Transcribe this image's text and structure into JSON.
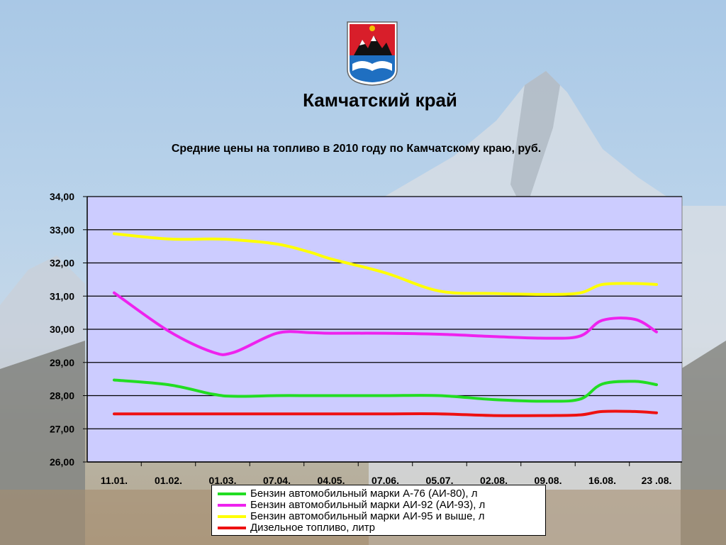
{
  "region_title": "Камчатский край",
  "emblem_icon": "kamchatka-coat-of-arms-icon",
  "chart_data": {
    "type": "line",
    "title": "Средние цены на топливо в 2010 году по Камчатскому краю, руб.",
    "xlabel": "",
    "ylabel": "",
    "categories": [
      "11.01.",
      "01.02.",
      "01.03.",
      "07.04.",
      "04.05.",
      "07.06.",
      "05.07.",
      "02.08.",
      "09.08.",
      "16.08.",
      "23 .08."
    ],
    "x": [
      0,
      1,
      1.8,
      2.2,
      3,
      3.6,
      4,
      5,
      6,
      7,
      8,
      8.6,
      9,
      9.6,
      10
    ],
    "ylim": [
      26,
      34
    ],
    "ytick_labels": [
      "26,00",
      "27,00",
      "28,00",
      "29,00",
      "30,00",
      "31,00",
      "32,00",
      "33,00",
      "34,00"
    ],
    "grid": true,
    "plot_background": "#ccccff",
    "legend_position": "bottom",
    "series": [
      {
        "name": "Бензин автомобильный марки А-76 (АИ-80), л",
        "color": "#22dd22",
        "values": [
          28.47,
          28.33,
          28.05,
          27.98,
          28.0,
          28.0,
          28.0,
          28.0,
          28.0,
          27.88,
          27.83,
          27.9,
          28.35,
          28.43,
          28.33
        ]
      },
      {
        "name": "Бензин автомобильный марки АИ-92 (АИ-93), л",
        "color": "#ee22ee",
        "values": [
          31.1,
          29.95,
          29.32,
          29.3,
          29.88,
          29.9,
          29.88,
          29.88,
          29.85,
          29.78,
          29.73,
          29.8,
          30.27,
          30.3,
          29.92
        ]
      },
      {
        "name": "Бензин автомобильный марки АИ-95 и выше, л",
        "color": "#ffff00",
        "values": [
          32.88,
          32.72,
          32.72,
          32.7,
          32.57,
          32.33,
          32.12,
          31.7,
          31.15,
          31.08,
          31.05,
          31.1,
          31.35,
          31.38,
          31.35
        ]
      },
      {
        "name": "Дизельное топливо, литр",
        "color": "#ee1111",
        "values": [
          27.45,
          27.45,
          27.45,
          27.45,
          27.45,
          27.45,
          27.45,
          27.45,
          27.45,
          27.4,
          27.4,
          27.42,
          27.52,
          27.52,
          27.48
        ]
      }
    ]
  }
}
